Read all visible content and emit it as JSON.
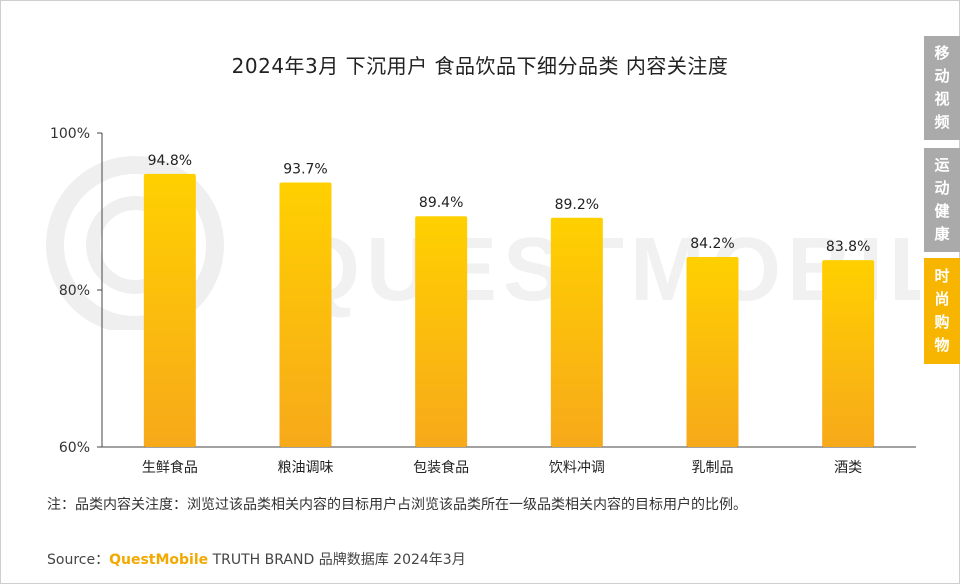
{
  "chart_data": {
    "type": "bar",
    "title": "2024年3月 下沉用户 食品饮品下细分品类 内容关注度",
    "categories": [
      "生鲜食品",
      "粮油调味",
      "包装食品",
      "饮料冲调",
      "乳制品",
      "酒类"
    ],
    "values": [
      94.8,
      93.7,
      89.4,
      89.2,
      84.2,
      83.8
    ],
    "value_labels": [
      "94.8%",
      "93.7%",
      "89.4%",
      "89.2%",
      "84.2%",
      "83.8%"
    ],
    "ylim": [
      60,
      100
    ],
    "yticks": [
      60,
      80,
      100
    ],
    "ytick_labels": [
      "60%",
      "80%",
      "100%"
    ],
    "xlabel": "",
    "ylabel": "",
    "grid": false
  },
  "colors": {
    "bar_top": "#ffd000",
    "bar_bottom": "#f7a91a",
    "tab_inactive": "#aaaaaa",
    "tab_active": "#f7b500",
    "brand": "#f2a900"
  },
  "side_tabs": [
    {
      "label": "移动视频",
      "active": false
    },
    {
      "label": "运动健康",
      "active": false
    },
    {
      "label": "时尚购物",
      "active": true
    }
  ],
  "note": "注：品类内容关注度：浏览过该品类相关内容的目标用户占浏览该品类所在一级品类相关内容的目标用户的比例。",
  "source": {
    "prefix": "Source：",
    "brand": "QuestMobile",
    "suffix": " TRUTH BRAND 品牌数据库 2024年3月"
  },
  "watermark_text": "QUESTMOBILE"
}
